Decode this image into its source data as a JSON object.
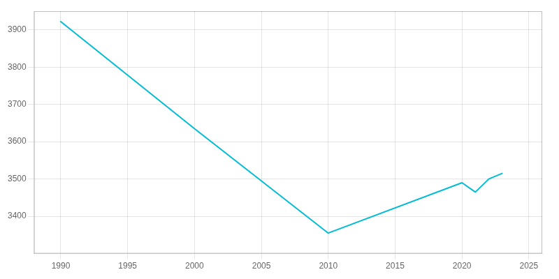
{
  "chart_data": {
    "type": "line",
    "x": [
      1990,
      2000,
      2010,
      2020,
      2021,
      2022,
      2023
    ],
    "values": [
      3922,
      3635,
      3355,
      3490,
      3465,
      3500,
      3515
    ],
    "color": "#00bcd4",
    "xlim": [
      1988,
      2026
    ],
    "ylim": [
      3300,
      3950
    ],
    "xticks": [
      1990,
      1995,
      2000,
      2005,
      2010,
      2015,
      2020,
      2025
    ],
    "yticks": [
      3400,
      3500,
      3600,
      3700,
      3800,
      3900
    ],
    "grid": true
  }
}
